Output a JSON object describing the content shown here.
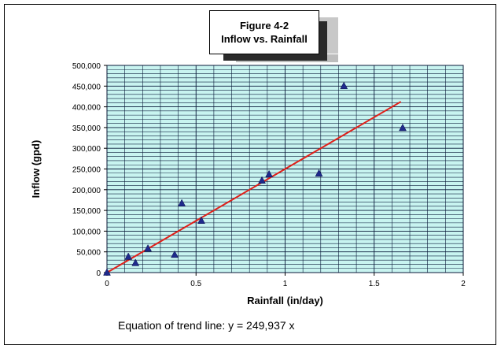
{
  "chart_data": {
    "type": "scatter",
    "title": "Figure 4-2",
    "subtitle": "Inflow vs. Rainfall",
    "xlabel": "Rainfall (in/day)",
    "ylabel": "Inflow (gpd)",
    "xlim": [
      0,
      2
    ],
    "ylim": [
      0,
      500000
    ],
    "x_ticks": [
      "0",
      "0.5",
      "1",
      "1.5",
      "2"
    ],
    "y_ticks": [
      "0",
      "50,000",
      "100,000",
      "150,000",
      "200,000",
      "250,000",
      "300,000",
      "350,000",
      "400,000",
      "450,000",
      "500,000"
    ],
    "grid": true,
    "plot_background": "#c8f4f0",
    "grid_color": "#0a1a3a",
    "marker_color": "#1f2a8c",
    "trendline_color": "#e0201a",
    "points": [
      {
        "x": 0,
        "y": 0
      },
      {
        "x": 0.12,
        "y": 38000
      },
      {
        "x": 0.16,
        "y": 23000
      },
      {
        "x": 0.23,
        "y": 58000
      },
      {
        "x": 0.38,
        "y": 43000
      },
      {
        "x": 0.42,
        "y": 167000
      },
      {
        "x": 0.53,
        "y": 125000
      },
      {
        "x": 0.87,
        "y": 222000
      },
      {
        "x": 0.91,
        "y": 237000
      },
      {
        "x": 1.19,
        "y": 239000
      },
      {
        "x": 1.33,
        "y": 450000
      },
      {
        "x": 1.66,
        "y": 349000
      }
    ],
    "trendline": {
      "slope": 249937,
      "x_range": [
        0,
        1.65
      ]
    },
    "annotation": "Equation of trend line:  y = 249,937 x"
  }
}
